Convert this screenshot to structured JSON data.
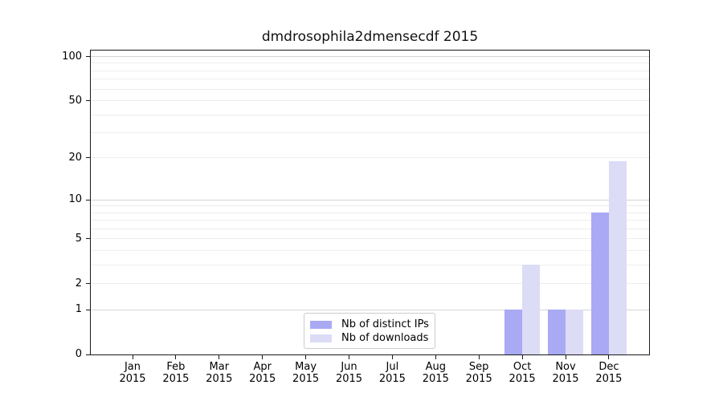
{
  "title": "dmdrosophila2dmensecdf 2015",
  "chart_data": {
    "type": "bar",
    "title": "dmdrosophila2dmensecdf 2015",
    "categories": [
      "Jan",
      "Feb",
      "Mar",
      "Apr",
      "May",
      "Jun",
      "Jul",
      "Aug",
      "Sep",
      "Oct",
      "Nov",
      "Dec"
    ],
    "x_tick_second_line": "2015",
    "series": [
      {
        "name": "Nb of distinct IPs",
        "color": "#a9a9f4",
        "values": [
          0,
          0,
          0,
          0,
          0,
          0,
          0,
          0,
          0,
          1,
          1,
          8
        ]
      },
      {
        "name": "Nb of downloads",
        "color": "#dcdcf6",
        "values": [
          0,
          0,
          0,
          0,
          0,
          0,
          0,
          0,
          0,
          3,
          1,
          19
        ]
      }
    ],
    "yscale": "log1p",
    "ylim": [
      0,
      110
    ],
    "y_tick_values": [
      0,
      1,
      2,
      5,
      10,
      20,
      50,
      100
    ],
    "y_tick_labels": [
      "0",
      "1",
      "2",
      "5",
      "10",
      "20",
      "50",
      "100"
    ],
    "y_major_gridlines": [
      1,
      10,
      100
    ],
    "y_minor_gridlines": [
      2,
      3,
      4,
      5,
      6,
      7,
      8,
      9,
      20,
      30,
      40,
      50,
      60,
      70,
      80,
      90
    ],
    "grid": true,
    "xlabel": "",
    "ylabel": "",
    "legend_position": "lower center"
  },
  "colors": {
    "distinct_ips": "#a9a9f4",
    "downloads": "#dcdcf6",
    "grid_major": "#d4d4d4",
    "grid_minor": "#ededed",
    "spine": "#1a1a1a",
    "text": "#000000",
    "legend_border": "#cccccc",
    "background": "#ffffff"
  }
}
